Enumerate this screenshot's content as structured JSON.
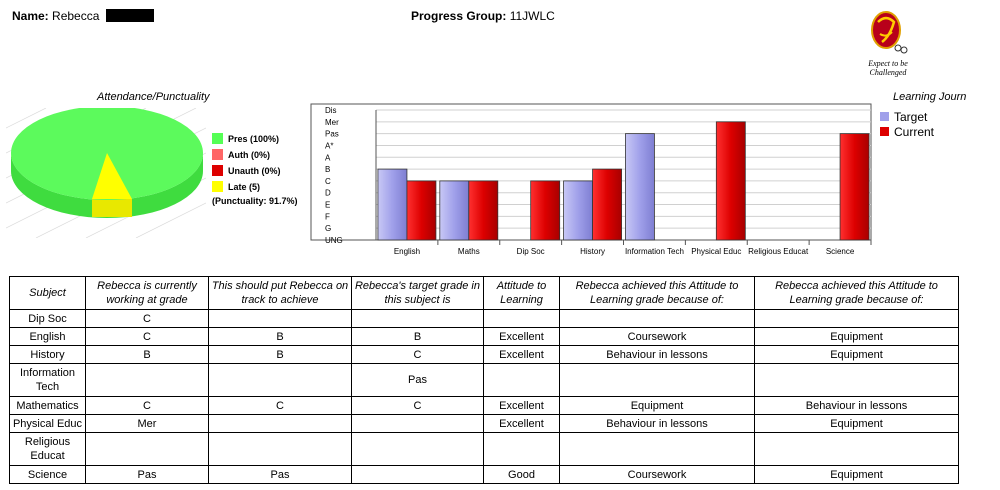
{
  "header": {
    "name_label": "Name:",
    "name_value": "Rebecca",
    "group_label": "Progress Group:",
    "group_value": "11JWLC"
  },
  "logo": {
    "motto_line1": "Expect to be",
    "motto_line2": "Challenged"
  },
  "attendance": {
    "title": "Attendance/Punctuality",
    "legend": [
      {
        "label": "Pres (100%)",
        "color": "#55ff55"
      },
      {
        "label": "Auth (0%)",
        "color": "#ff6666"
      },
      {
        "label": "Unauth (0%)",
        "color": "#dd0000"
      },
      {
        "label": "Late (5)",
        "color": "#ffff00"
      }
    ],
    "punctuality": "(Punctuality: 91.7%)",
    "chart_data": {
      "type": "pie",
      "slices": [
        {
          "label": "Present on time",
          "value": 91.7
        },
        {
          "label": "Late",
          "value": 8.3
        }
      ]
    }
  },
  "learning": {
    "title": "Learning Journ",
    "chart_data": {
      "type": "bar",
      "levels": [
        "UNG",
        "G",
        "F",
        "E",
        "D",
        "C",
        "B",
        "A",
        "A*",
        "Pas",
        "Mer",
        "Dis"
      ],
      "categories": [
        "English",
        "Maths",
        "Dip Soc",
        "History",
        "Information Tech",
        "Physical Educ",
        "Religious Educat",
        "Science"
      ],
      "series": [
        {
          "name": "Target",
          "color": "#a0a0ea",
          "values": [
            "B",
            "C",
            null,
            "C",
            "Pas",
            null,
            null,
            null
          ]
        },
        {
          "name": "Current",
          "color": "#dd0000",
          "values": [
            "C",
            "C",
            "C",
            "B",
            null,
            "Mer",
            null,
            "Pas"
          ]
        }
      ]
    }
  },
  "table": {
    "headers": [
      "Subject",
      "Rebecca is currently working at grade",
      "This should put Rebecca on track to achieve",
      "Rebecca's target grade in this subject is",
      "Attitude to Learning",
      "Rebecca achieved this Attitude to Learning grade because of:",
      "Rebecca achieved this Attitude to Learning grade because of:"
    ],
    "rows": [
      [
        "Dip Soc",
        "C",
        "",
        "",
        "",
        "",
        ""
      ],
      [
        "English",
        "C",
        "B",
        "B",
        "Excellent",
        "Coursework",
        "Equipment"
      ],
      [
        "History",
        "B",
        "B",
        "C",
        "Excellent",
        "Behaviour in lessons",
        "Equipment"
      ],
      [
        "Information Tech",
        "",
        "",
        "Pas",
        "",
        "",
        ""
      ],
      [
        "Mathematics",
        "C",
        "C",
        "C",
        "Excellent",
        "Equipment",
        "Behaviour in lessons"
      ],
      [
        "Physical Educ",
        "Mer",
        "",
        "",
        "Excellent",
        "Behaviour in lessons",
        "Equipment"
      ],
      [
        "Religious Educat",
        "",
        "",
        "",
        "",
        "",
        ""
      ],
      [
        "Science",
        "Pas",
        "Pas",
        "",
        "Good",
        "Coursework",
        "Equipment"
      ]
    ]
  }
}
